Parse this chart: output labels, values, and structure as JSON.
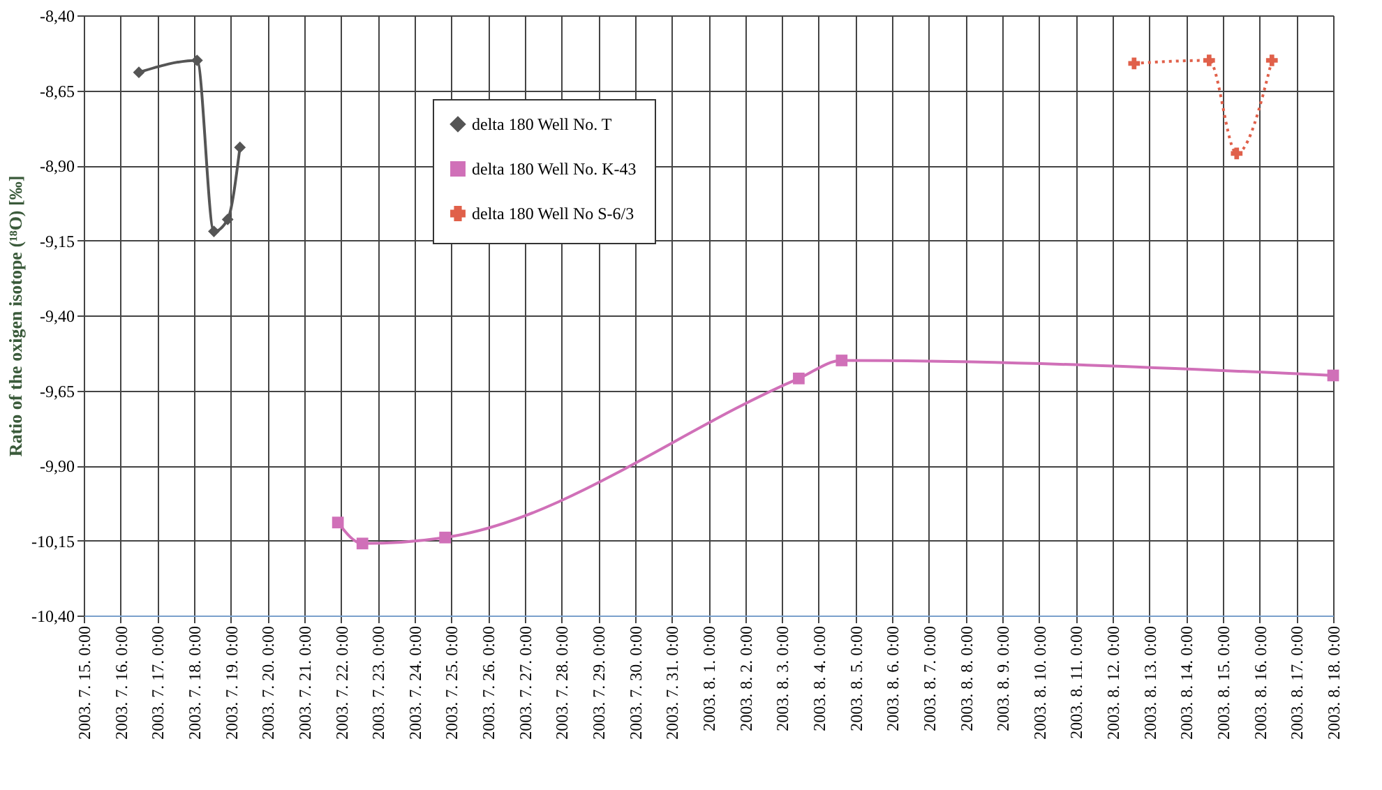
{
  "chart_data": {
    "type": "line",
    "ylabel": "Ratio of the oxigen isotope (¹⁸O) [‰]",
    "xlim": [
      "2003-07-15T00:00",
      "2003-08-18T00:00"
    ],
    "xticks": [
      {
        "value": "2003-07-15T00:00",
        "label": "2003. 7. 15. 0:00"
      },
      {
        "value": "2003-07-16T00:00",
        "label": "2003. 7. 16. 0:00"
      },
      {
        "value": "2003-07-17T00:00",
        "label": "2003. 7. 17. 0:00"
      },
      {
        "value": "2003-07-18T00:00",
        "label": "2003. 7. 18. 0:00"
      },
      {
        "value": "2003-07-19T00:00",
        "label": "2003. 7. 19. 0:00"
      },
      {
        "value": "2003-07-20T00:00",
        "label": "2003. 7. 20. 0:00"
      },
      {
        "value": "2003-07-21T00:00",
        "label": "2003. 7. 21. 0:00"
      },
      {
        "value": "2003-07-22T00:00",
        "label": "2003. 7. 22. 0:00"
      },
      {
        "value": "2003-07-23T00:00",
        "label": "2003. 7. 23. 0:00"
      },
      {
        "value": "2003-07-24T00:00",
        "label": "2003. 7. 24. 0:00"
      },
      {
        "value": "2003-07-25T00:00",
        "label": "2003. 7. 25. 0:00"
      },
      {
        "value": "2003-07-26T00:00",
        "label": "2003. 7. 26. 0:00"
      },
      {
        "value": "2003-07-27T00:00",
        "label": "2003. 7. 27. 0:00"
      },
      {
        "value": "2003-07-28T00:00",
        "label": "2003. 7. 28. 0:00"
      },
      {
        "value": "2003-07-29T00:00",
        "label": "2003. 7. 29. 0:00"
      },
      {
        "value": "2003-07-30T00:00",
        "label": "2003. 7. 30. 0:00"
      },
      {
        "value": "2003-07-31T00:00",
        "label": "2003. 7. 31. 0:00"
      },
      {
        "value": "2003-08-01T00:00",
        "label": "2003. 8. 1. 0:00"
      },
      {
        "value": "2003-08-02T00:00",
        "label": "2003. 8. 2. 0:00"
      },
      {
        "value": "2003-08-03T00:00",
        "label": "2003. 8. 3. 0:00"
      },
      {
        "value": "2003-08-04T00:00",
        "label": "2003. 8. 4. 0:00"
      },
      {
        "value": "2003-08-05T00:00",
        "label": "2003. 8. 5. 0:00"
      },
      {
        "value": "2003-08-06T00:00",
        "label": "2003. 8. 6. 0:00"
      },
      {
        "value": "2003-08-07T00:00",
        "label": "2003. 8. 7. 0:00"
      },
      {
        "value": "2003-08-08T00:00",
        "label": "2003. 8. 8. 0:00"
      },
      {
        "value": "2003-08-09T00:00",
        "label": "2003. 8. 9. 0:00"
      },
      {
        "value": "2003-08-10T00:00",
        "label": "2003. 8. 10. 0:00"
      },
      {
        "value": "2003-08-11T00:00",
        "label": "2003. 8. 11. 0:00"
      },
      {
        "value": "2003-08-12T00:00",
        "label": "2003. 8. 12. 0:00"
      },
      {
        "value": "2003-08-13T00:00",
        "label": "2003. 8. 13. 0:00"
      },
      {
        "value": "2003-08-14T00:00",
        "label": "2003. 8. 14. 0:00"
      },
      {
        "value": "2003-08-15T00:00",
        "label": "2003. 8. 15. 0:00"
      },
      {
        "value": "2003-08-16T00:00",
        "label": "2003. 8. 16. 0:00"
      },
      {
        "value": "2003-08-17T00:00",
        "label": "2003. 8. 17. 0:00"
      },
      {
        "value": "2003-08-18T00:00",
        "label": "2003. 8. 18. 0:00"
      }
    ],
    "ylim": [
      -10.4,
      -8.4
    ],
    "yticks": [
      {
        "value": -10.4,
        "label": "-10,40"
      },
      {
        "value": -10.15,
        "label": "-10,15"
      },
      {
        "value": -9.9,
        "label": "-9,90"
      },
      {
        "value": -9.65,
        "label": "-9,65"
      },
      {
        "value": -9.4,
        "label": "-9,40"
      },
      {
        "value": -9.15,
        "label": "-9,15"
      },
      {
        "value": -8.9,
        "label": "-8,90"
      },
      {
        "value": -8.65,
        "label": "-8,65"
      },
      {
        "value": -8.4,
        "label": "-8,40"
      }
    ],
    "grid": true,
    "legend": "top",
    "series": [
      {
        "name": "delta 180 Well No. T",
        "color": "#555555",
        "marker": "diamond",
        "line_style": "solid",
        "x": [
          "2003-07-16T12:00",
          "2003-07-18T02:00",
          "2003-07-18T13:00",
          "2003-07-18T22:00",
          "2003-07-19T06:00"
        ],
        "values": [
          -8.59,
          -8.55,
          -9.12,
          -9.08,
          -8.84
        ]
      },
      {
        "name": "delta 180 Well No. K-43",
        "color": "#d070b8",
        "marker": "square",
        "line_style": "solid",
        "x": [
          "2003-07-21T22:00",
          "2003-07-22T14:00",
          "2003-07-24T20:00",
          "2003-08-03T11:00",
          "2003-08-04T15:00",
          "2003-08-18T00:00"
        ],
        "values": [
          -10.09,
          -10.16,
          -10.14,
          -9.61,
          -9.55,
          -9.6
        ]
      },
      {
        "name": "delta 180 Well No S-6/3",
        "color": "#e0604a",
        "marker": "cross",
        "line_style": "dotted",
        "x": [
          "2003-08-12T14:00",
          "2003-08-14T15:00",
          "2003-08-15T09:00",
          "2003-08-16T08:00"
        ],
        "values": [
          -8.56,
          -8.55,
          -8.86,
          -8.55
        ]
      }
    ]
  }
}
